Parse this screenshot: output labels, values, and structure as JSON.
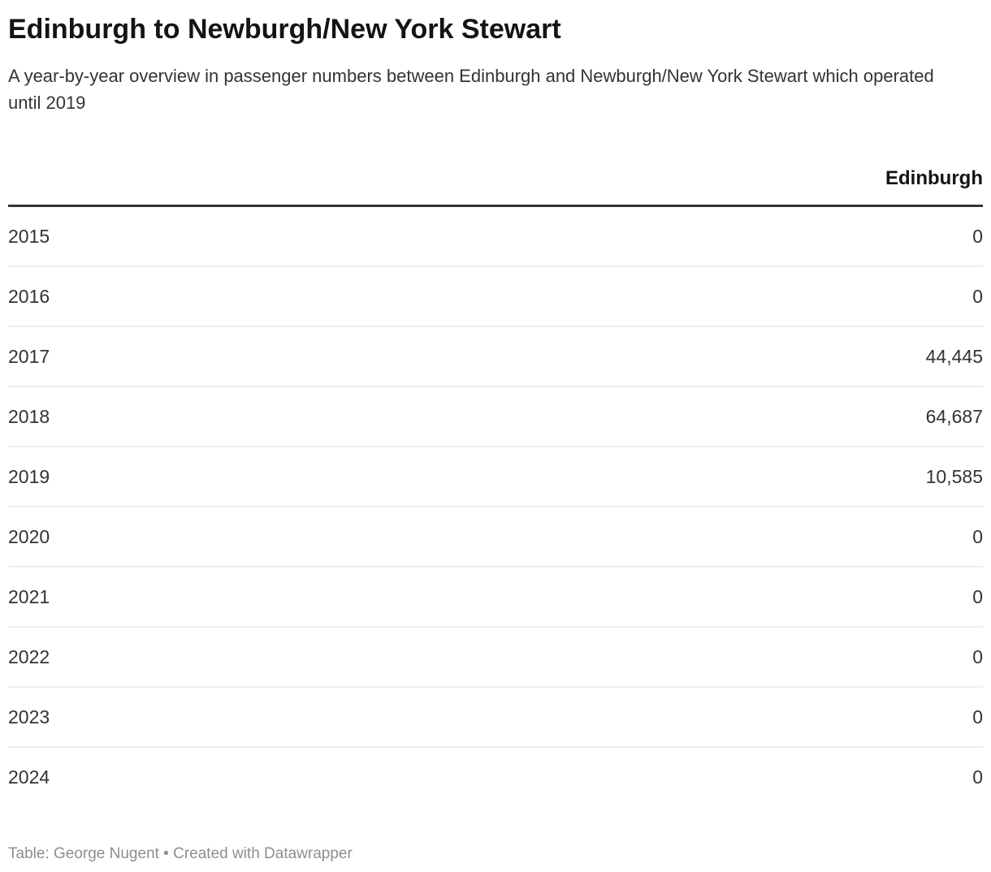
{
  "header": {
    "title": "Edinburgh to Newburgh/New York Stewart",
    "subtitle": "A year-by-year overview in passenger numbers between Edinburgh and Newburgh/New York Stewart which operated until 2019"
  },
  "table": {
    "year_column_header": "",
    "value_column_header": "Edinburgh",
    "rows": [
      {
        "year": "2015",
        "value": "0"
      },
      {
        "year": "2016",
        "value": "0"
      },
      {
        "year": "2017",
        "value": "44,445"
      },
      {
        "year": "2018",
        "value": "64,687"
      },
      {
        "year": "2019",
        "value": "10,585"
      },
      {
        "year": "2020",
        "value": "0"
      },
      {
        "year": "2021",
        "value": "0"
      },
      {
        "year": "2022",
        "value": "0"
      },
      {
        "year": "2023",
        "value": "0"
      },
      {
        "year": "2024",
        "value": "0"
      }
    ]
  },
  "footer": {
    "attribution": "Table: George Nugent • Created with Datawrapper"
  },
  "colors": {
    "background": "#ffffff",
    "title_text": "#141414",
    "body_text": "#333333",
    "header_rule": "#333333",
    "row_divider": "#eeeeee",
    "footer_text": "#8e8e8e"
  },
  "chart_data": {
    "type": "table",
    "title": "Edinburgh to Newburgh/New York Stewart",
    "subtitle": "A year-by-year overview in passenger numbers between Edinburgh and Newburgh/New York Stewart which operated until 2019",
    "columns": [
      "",
      "Edinburgh"
    ],
    "categories": [
      "2015",
      "2016",
      "2017",
      "2018",
      "2019",
      "2020",
      "2021",
      "2022",
      "2023",
      "2024"
    ],
    "series": [
      {
        "name": "Edinburgh",
        "values": [
          0,
          0,
          44445,
          64687,
          10585,
          0,
          0,
          0,
          0,
          0
        ]
      }
    ],
    "attribution": "Table: George Nugent • Created with Datawrapper",
    "layout_hints": {
      "value_alignment": "right",
      "header_rule": "thick solid under header",
      "row_dividers": "thin light gray between rows only"
    }
  }
}
